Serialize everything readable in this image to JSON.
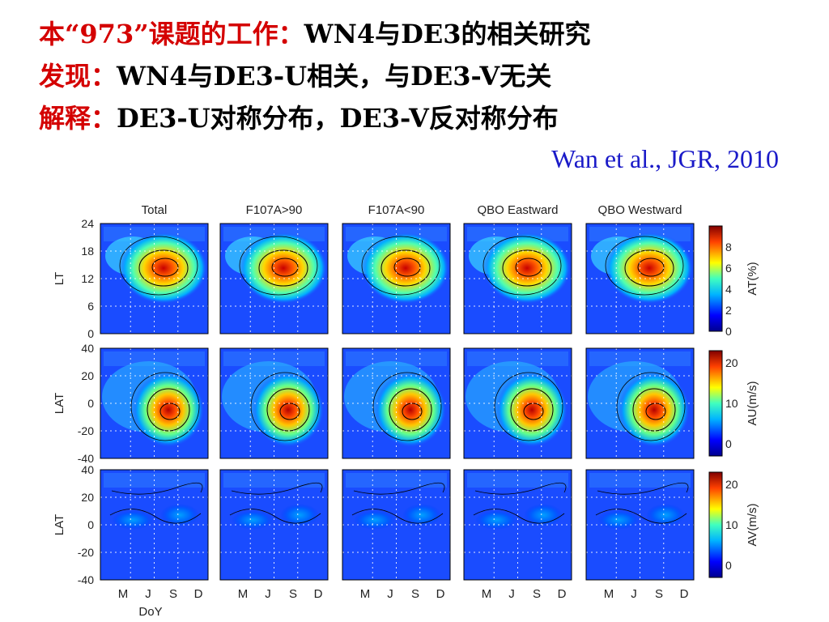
{
  "slide": {
    "line1_label": "本“973”课题的工作：",
    "line1_text": "WN4与DE3的相关研究",
    "line2_label": "发现：",
    "line2_text": "WN4与DE3-U相关，与DE3-V无关",
    "line3_label": "解释：",
    "line3_text": "DE3-U对称分布，DE3-V反对称分布",
    "citation": "Wan et al., JGR, 2010",
    "label_color": "#d40000",
    "citation_color": "#1a1ac8"
  },
  "figure": {
    "column_titles": [
      "Total",
      "F107A>90",
      "F107A<90",
      "QBO Eastward",
      "QBO Westward"
    ],
    "x_ticks": [
      "M",
      "J",
      "S",
      "D"
    ],
    "x_label": "DoY",
    "rows": [
      {
        "ylabel": "LT",
        "yticks": [
          "24",
          "18",
          "12",
          "6",
          "0"
        ],
        "colorbar_label": "AT(%)",
        "colorbar_ticks": [
          "8",
          "6",
          "4",
          "2",
          "0"
        ]
      },
      {
        "ylabel": "LAT",
        "yticks": [
          "40",
          "20",
          "0",
          "-20",
          "-40"
        ],
        "colorbar_label": "AU(m/s)",
        "colorbar_ticks": [
          "20",
          "10",
          "0"
        ]
      },
      {
        "ylabel": "LAT",
        "yticks": [
          "40",
          "20",
          "0",
          "-20",
          "-40"
        ],
        "colorbar_label": "AV(m/s)",
        "colorbar_ticks": [
          "20",
          "10",
          "0"
        ]
      }
    ]
  }
}
